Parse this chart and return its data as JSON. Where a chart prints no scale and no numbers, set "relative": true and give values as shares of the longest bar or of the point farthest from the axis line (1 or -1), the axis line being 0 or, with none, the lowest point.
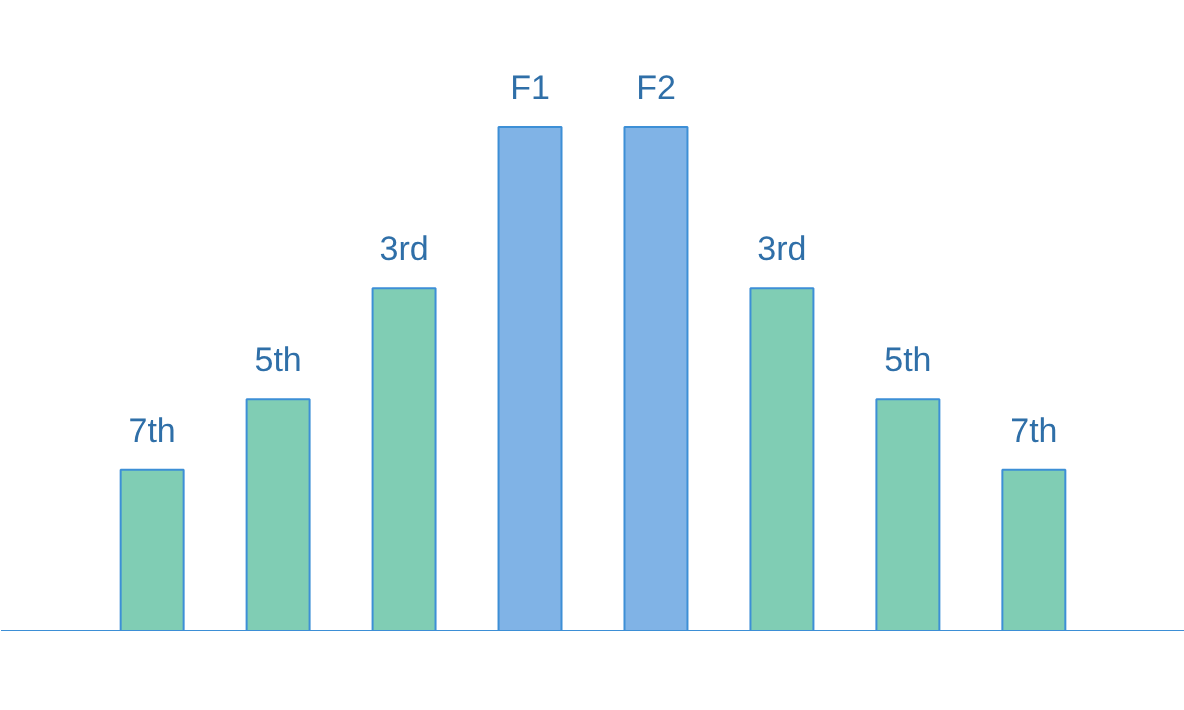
{
  "chart_data": {
    "type": "bar",
    "relative": true,
    "categories": [
      "7th",
      "5th",
      "3rd",
      "F1",
      "F2",
      "3rd",
      "5th",
      "7th"
    ],
    "values": [
      0.32,
      0.46,
      0.68,
      1,
      1,
      0.68,
      0.46,
      0.32
    ],
    "colors": [
      "#80cdb4",
      "#80cdb4",
      "#80cdb4",
      "#80b3e6",
      "#80b3e6",
      "#80cdb4",
      "#80cdb4",
      "#80cdb4"
    ]
  }
}
